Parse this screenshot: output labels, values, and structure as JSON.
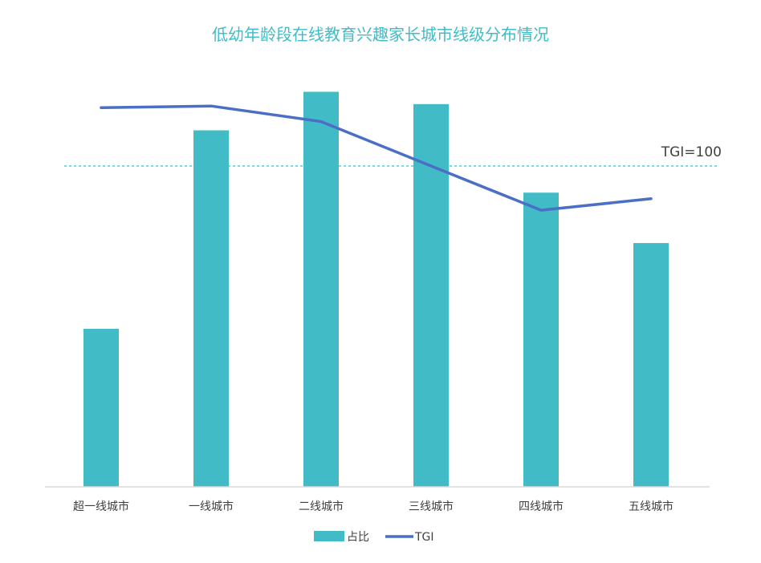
{
  "chart_data": {
    "type": "bar+line",
    "title": "低幼年龄段在线教育兴趣家长城市线级分布情况",
    "categories": [
      "超一线城市",
      "一线城市",
      "二线城市",
      "三线城市",
      "四线城市",
      "五线城市"
    ],
    "series": [
      {
        "name": "占比",
        "type": "bar",
        "values": [
          39.8,
          89.8,
          99.5,
          96.4,
          74.1,
          61.4
        ]
      },
      {
        "name": "TGI",
        "type": "line",
        "values": [
          121.4,
          122.0,
          116.3,
          100.0,
          83.8,
          88.0
        ]
      }
    ],
    "reference_line": {
      "label": "TGI=100",
      "value": 100,
      "style": "dashed"
    },
    "legend_position": "bottom",
    "grid": false,
    "colors": {
      "bar": "#41BCC7",
      "line": "#4A6FC5",
      "title": "#41BCC7",
      "reference": "#41BCC7",
      "axis": "#D9D9D9",
      "text": "#404040"
    }
  }
}
